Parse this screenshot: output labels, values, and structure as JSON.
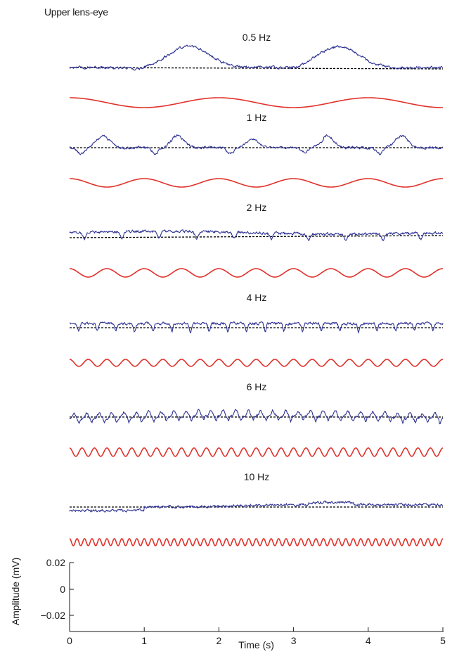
{
  "chart_data": {
    "type": "line",
    "title": "Upper lens-eye",
    "xlabel": "Time (s)",
    "ylabel": "Amplitude (mV)",
    "xlim": [
      0,
      5
    ],
    "ylim": [
      -0.02,
      0.02
    ],
    "x_ticks": [
      "0",
      "1",
      "2",
      "3",
      "4",
      "5"
    ],
    "y_ticks": [
      "0.02",
      "0",
      "−0.02"
    ],
    "grid": false,
    "panels": [
      {
        "label": "0.5 Hz",
        "frequency": 0.5
      },
      {
        "label": "1 Hz",
        "frequency": 1
      },
      {
        "label": "2 Hz",
        "frequency": 2
      },
      {
        "label": "4 Hz",
        "frequency": 4
      },
      {
        "label": "6 Hz",
        "frequency": 6
      },
      {
        "label": "10 Hz",
        "frequency": 10
      }
    ],
    "colors": {
      "response": "#2e3192",
      "stimulus": "#e0312a",
      "baseline": "#000000",
      "axis": "#1a1a1a"
    }
  }
}
